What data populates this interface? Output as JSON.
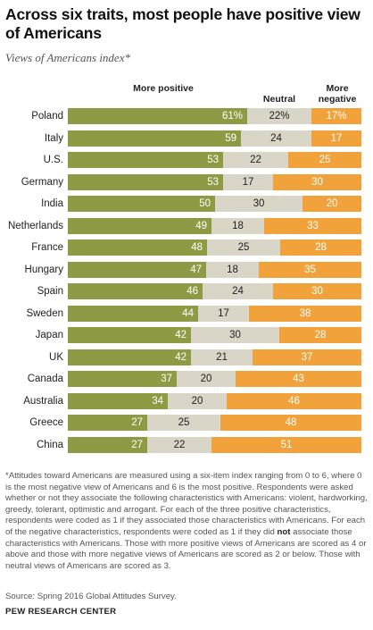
{
  "title": "Across six traits, most people have positive view of Americans",
  "subtitle": "Views of Americans index*",
  "colors": {
    "positive": "#8f9a44",
    "neutral": "#d9d6c8",
    "negative": "#f2a23a"
  },
  "chart_data": {
    "type": "bar",
    "orientation": "horizontal",
    "stacked": true,
    "categories": [
      "Poland",
      "Italy",
      "U.S.",
      "Germany",
      "India",
      "Netherlands",
      "France",
      "Hungary",
      "Spain",
      "Sweden",
      "Japan",
      "UK",
      "Canada",
      "Australia",
      "Greece",
      "China"
    ],
    "series": [
      {
        "name": "More positive",
        "values": [
          61,
          59,
          53,
          53,
          50,
          49,
          48,
          47,
          46,
          44,
          42,
          42,
          37,
          34,
          27,
          27
        ]
      },
      {
        "name": "Neutral",
        "values": [
          22,
          24,
          22,
          17,
          30,
          18,
          25,
          18,
          24,
          17,
          30,
          21,
          20,
          20,
          25,
          22
        ]
      },
      {
        "name": "More negative",
        "values": [
          17,
          17,
          25,
          30,
          20,
          33,
          28,
          35,
          30,
          38,
          28,
          37,
          43,
          46,
          48,
          51
        ]
      }
    ],
    "labels": [
      [
        "61%",
        "22%",
        "17%"
      ],
      [
        "59",
        "24",
        "17"
      ],
      [
        "53",
        "22",
        "25"
      ],
      [
        "53",
        "17",
        "30"
      ],
      [
        "50",
        "30",
        "20"
      ],
      [
        "49",
        "18",
        "33"
      ],
      [
        "48",
        "25",
        "28"
      ],
      [
        "47",
        "18",
        "35"
      ],
      [
        "46",
        "24",
        "30"
      ],
      [
        "44",
        "17",
        "38"
      ],
      [
        "42",
        "30",
        "28"
      ],
      [
        "42",
        "21",
        "37"
      ],
      [
        "37",
        "20",
        "43"
      ],
      [
        "34",
        "20",
        "46"
      ],
      [
        "27",
        "25",
        "48"
      ],
      [
        "27",
        "22",
        "51"
      ]
    ],
    "legend": {
      "positive": "More positive",
      "neutral": "Neutral",
      "negative": "More negative"
    }
  },
  "footnote": {
    "part1": "*Attitudes toward Americans are measured using a six-item index ranging from 0 to 6, where 0 is the most negative view of Americans and 6 is the most positive. Respondents were asked whether or not they associate the following characteristics with Americans: violent, hardworking, greedy, tolerant, optimistic and arrogant. For each of the three positive characteristics, respondents were coded as 1 if they associated those characteristics with Americans. For each of the negative characteristics, respondents were coded as 1 if they did ",
    "bold": "not",
    "part2": " associate those characteristics with Americans. Those with more positive views of Americans are scored as 4 or above and those with more negative views of Americans are scored as 2 or below. Those with neutral views of Americans are scored as 3."
  },
  "source": "Source: Spring 2016 Global Attitudes Survey.",
  "organization": "PEW RESEARCH CENTER"
}
